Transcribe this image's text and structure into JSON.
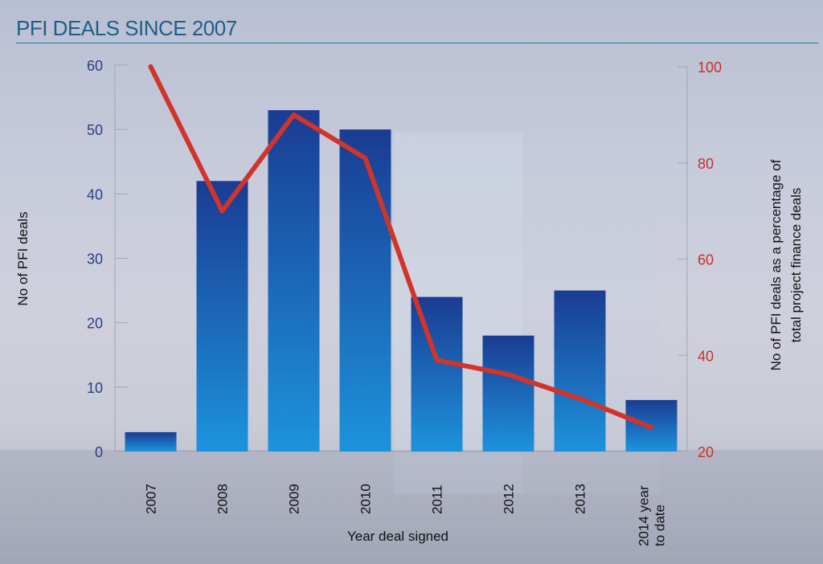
{
  "title": "PFI DEALS SINCE 2007",
  "chart_data": {
    "type": "bar+line",
    "title": "PFI DEALS SINCE 2007",
    "xlabel": "Year deal signed",
    "ylabel": "No of PFI deals",
    "y2label": [
      "No of PFI deals as a percentage of",
      "total project finance deals"
    ],
    "categories": [
      [
        "2007"
      ],
      [
        "2008"
      ],
      [
        "2009"
      ],
      [
        "2010"
      ],
      [
        "2011"
      ],
      [
        "2012"
      ],
      [
        "2013"
      ],
      [
        "2014 year",
        "to date"
      ]
    ],
    "ylim": [
      0,
      60
    ],
    "yticks": [
      0,
      10,
      20,
      30,
      40,
      50,
      60
    ],
    "y2lim": [
      20,
      100
    ],
    "y2ticks": [
      20,
      40,
      60,
      80,
      100
    ],
    "series": [
      {
        "type": "bar",
        "axis": "left",
        "values": [
          3,
          42,
          53,
          50,
          24,
          18,
          25,
          8
        ],
        "color": "#1e4c9f"
      },
      {
        "type": "line",
        "axis": "right",
        "values": [
          100,
          70,
          90,
          81,
          39,
          36,
          31,
          25
        ],
        "color": "#d0342b"
      }
    ],
    "grid": false
  }
}
